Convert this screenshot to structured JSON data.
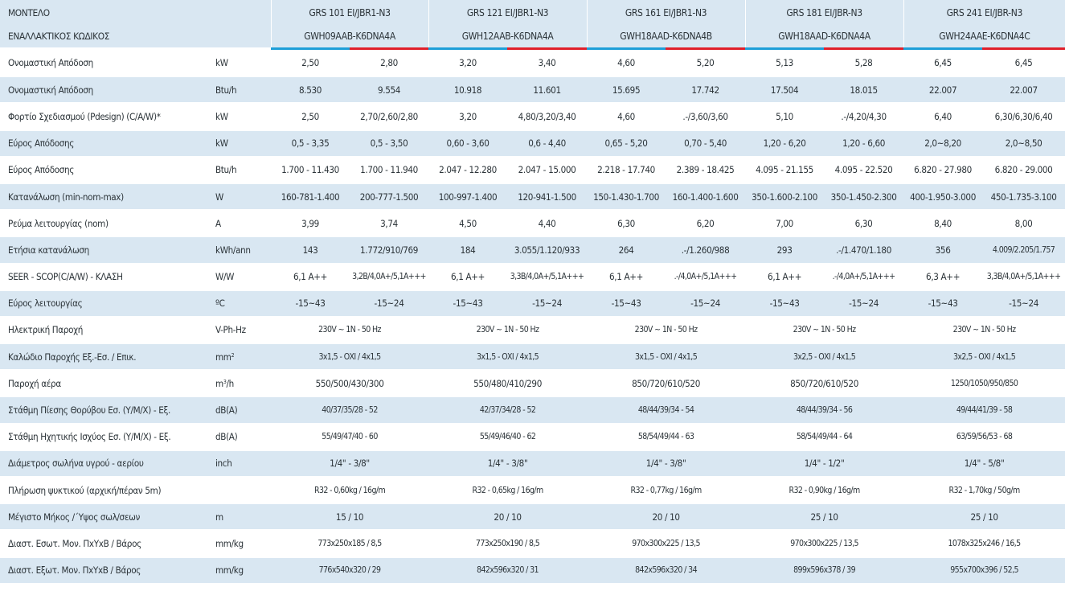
{
  "header": {
    "model_label": "ΜΟΝΤΕΛΟ",
    "alt_code_label": "ΕΝΑΛΛΑΚΤΙΚΟΣ ΚΩΔΙΚΟΣ",
    "models": [
      {
        "name": "GRS 101 EI/JBR1-N3",
        "code": "GWH09AAB-K6DNA4A"
      },
      {
        "name": "GRS 121 EI/JBR1-N3",
        "code": "GWH12AAB-K6DNA4A"
      },
      {
        "name": "GRS 161 EI/JBR1-N3",
        "code": "GWH18AAD-K6DNA4B"
      },
      {
        "name": "GRS 181 EI/JBR-N3",
        "code": "GWH18AAD-K6DNA4A"
      },
      {
        "name": "GRS 241 EI/JBR-N3",
        "code": "GWH24AAE-K6DNA4C"
      }
    ],
    "colors": {
      "cooling": "#1e9fd8",
      "heating": "#e0202b",
      "row_shade": "#d9e7f2"
    }
  },
  "rows": [
    {
      "label": "Ονομαστική Απόδοση",
      "unit": "kW",
      "values": [
        "2,50",
        "2,80",
        "3,20",
        "3,40",
        "4,60",
        "5,20",
        "5,13",
        "5,28",
        "6,45",
        "6,45"
      ]
    },
    {
      "label": "Ονομαστική Απόδοση",
      "unit": "Btu/h",
      "values": [
        "8.530",
        "9.554",
        "10.918",
        "11.601",
        "15.695",
        "17.742",
        "17.504",
        "18.015",
        "22.007",
        "22.007"
      ]
    },
    {
      "label": "Φορτίο Σχεδιασμού (Pdesign) (C/A/W)*",
      "unit": "kW",
      "values": [
        "2,50",
        "2,70/2,60/2,80",
        "3,20",
        "4,80/3,20/3,40",
        "4,60",
        ".-/3,60/3,60",
        "5,10",
        ".-/4,20/4,30",
        "6,40",
        "6,30/6,30/6,40"
      ]
    },
    {
      "label": "Εύρος Απόδοσης",
      "unit": "kW",
      "values": [
        "0,5 - 3,35",
        "0,5 - 3,50",
        "0,60 - 3,60",
        "0,6 - 4,40",
        "0,65 - 5,20",
        "0,70 - 5,40",
        "1,20 - 6,20",
        "1,20 - 6,60",
        "2,0~8,20",
        "2,0~8,50"
      ]
    },
    {
      "label": "Εύρος Απόδοσης",
      "unit": "Btu/h",
      "values": [
        "1.700 - 11.430",
        "1.700 - 11.940",
        "2.047 - 12.280",
        "2.047 - 15.000",
        "2.218 - 17.740",
        "2.389 - 18.425",
        "4.095 - 21.155",
        "4.095 - 22.520",
        "6.820 - 27.980",
        "6.820 - 29.000"
      ]
    },
    {
      "label": "Κατανάλωση (min-nom-max)",
      "unit": "W",
      "values": [
        "160-781-1.400",
        "200-777-1.500",
        "100-997-1.400",
        "120-941-1.500",
        "150-1.430-1.700",
        "160-1.400-1.600",
        "350-1.600-2.100",
        "350-1.450-2.300",
        "400-1.950-3.000",
        "450-1.735-3.100"
      ]
    },
    {
      "label": "Ρεύμα λειτουργίας (nom)",
      "unit": "A",
      "values": [
        "3,99",
        "3,74",
        "4,50",
        "4,40",
        "6,30",
        "6,20",
        "7,00",
        "6,30",
        "8,40",
        "8,00"
      ]
    },
    {
      "label": "Ετήσια κατανάλωση",
      "unit": "kWh/ann",
      "values": [
        "143",
        "1.772/910/769",
        "184",
        "3.055/1.120/933",
        "264",
        ".-/1.260/988",
        "293",
        ".-/1.470/1.180",
        "356",
        "4.009/2.205/1.757"
      ]
    },
    {
      "label": "SEER - SCOP(C/A/W) - ΚΛΑΣΗ",
      "unit": "W/W",
      "values": [
        "6,1 A++",
        "3,2B/4,0A+/5,1A+++",
        "6,1 A++",
        "3,3B/4,0A+/5,1A+++",
        "6,1 A++",
        ".-/4,0A+/5,1A+++",
        "6,1 A++",
        ".-/4,0A+/5,1A+++",
        "6,3 A++",
        "3,3B/4,0A+/5,1A+++"
      ]
    },
    {
      "label": "Εύρος λειτουργίας",
      "unit": "ºC",
      "values": [
        "-15~43",
        "-15~24",
        "-15~43",
        "-15~24",
        "-15~43",
        "-15~24",
        "-15~43",
        "-15~24",
        "-15~43",
        "-15~24"
      ]
    },
    {
      "label": "Ηλεκτρική Παροχή",
      "unit": "V-Ph-Hz",
      "values": [
        "230V ~ 1N - 50 Hz",
        "230V ~ 1N - 50 Hz",
        "230V ~ 1N - 50 Hz",
        "230V ~ 1N - 50 Hz",
        "230V ~ 1N - 50 Hz"
      ]
    },
    {
      "label": "Καλώδιο Παροχής Εξ.-Εσ. / Επικ.",
      "unit": "mm",
      "unit_sup": "2",
      "values": [
        "3x1,5 - ΟΧΙ / 4x1,5",
        "3x1,5 - ΟΧΙ / 4x1,5",
        "3x1,5 - ΟΧΙ / 4x1,5",
        "3x2,5 - ΟΧΙ / 4x1,5",
        "3x2,5 - ΟΧΙ / 4x1,5"
      ]
    },
    {
      "label": "Παροχή αέρα",
      "unit": "m",
      "unit_sup": "3",
      "unit_suffix": "/h",
      "values": [
        "550/500/430/300",
        "550/480/410/290",
        "850/720/610/520",
        "850/720/610/520",
        "1250/1050/950/850"
      ]
    },
    {
      "label": "Στάθμη Πίεσης Θορύβου Εσ. (Υ/Μ/Χ) - Εξ.",
      "unit": "dB(A)",
      "values": [
        "40/37/35/28 - 52",
        "42/37/34/28 - 52",
        "48/44/39/34 - 54",
        "48/44/39/34 - 56",
        "49/44/41/39 - 58"
      ]
    },
    {
      "label": "Στάθμη Ηχητικής Ισχύος Εσ. (Υ/Μ/Χ) - Εξ.",
      "unit": "dB(A)",
      "values": [
        "55/49/47/40 - 60",
        "55/49/46/40 - 62",
        "58/54/49/44 - 63",
        "58/54/49/44 - 64",
        "63/59/56/53 - 68"
      ]
    },
    {
      "label": "Διάμετρος σωλήνα υγρού - αερίου",
      "unit": "inch",
      "values": [
        "1/4\" - 3/8\"",
        "1/4\" - 3/8\"",
        "1/4\" - 3/8\"",
        "1/4\" - 1/2\"",
        "1/4\" - 5/8\""
      ]
    },
    {
      "label": "Πλήρωση ψυκτικού (αρχική/πέραν 5m)",
      "unit": "",
      "values": [
        "R32 - 0,60kg / 16g/m",
        "R32 - 0,65kg / 16g/m",
        "R32 - 0,77kg / 16g/m",
        "R32 - 0,90kg / 16g/m",
        "R32 - 1,70kg / 50g/m"
      ]
    },
    {
      "label": "Μέγιστο Μήκος /΄Υψος σωλ/σεων",
      "unit": "m",
      "values": [
        "15 / 10",
        "20 / 10",
        "20 / 10",
        "25 / 10",
        "25 / 10"
      ]
    },
    {
      "label": "Διαστ. Εσωτ. Μον. ΠxΥxΒ / Βάρος",
      "unit": "mm/kg",
      "values": [
        "773x250x185 / 8,5",
        "773x250x190 / 8,5",
        "970x300x225 / 13,5",
        "970x300x225 / 13,5",
        "1078x325x246 / 16,5"
      ]
    },
    {
      "label": "Διαστ. Εξωτ. Μον. ΠxΥxΒ / Βάρος",
      "unit": "mm/kg",
      "values": [
        "776x540x320 / 29",
        "842x596x320 / 31",
        "842x596x320 / 34",
        "899x596x378 / 39",
        "955x700x396 / 52,5"
      ]
    }
  ]
}
